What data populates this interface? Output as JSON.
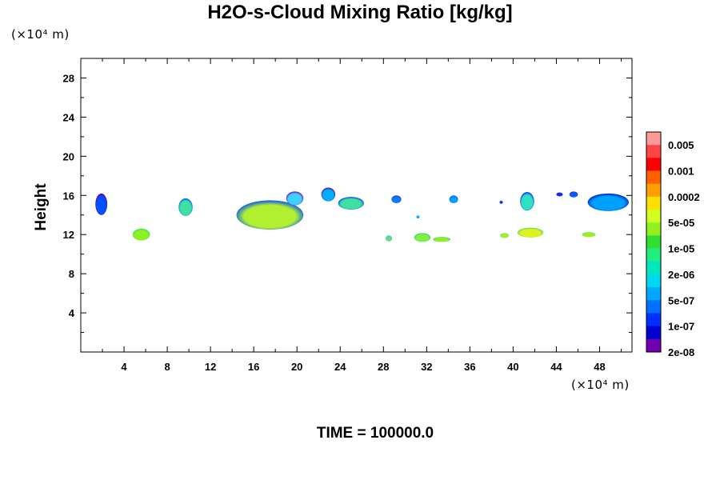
{
  "chart_data": {
    "type": "heatmap",
    "title": "H2O-s-Cloud Mixing Ratio [kg/kg]",
    "ylabel": "Height",
    "x_unit": "(×10⁴ m)",
    "y_unit": "(×10⁴ m)",
    "xlim": [
      0,
      51
    ],
    "ylim": [
      0,
      30
    ],
    "x_ticks": [
      "4",
      "8",
      "12",
      "16",
      "20",
      "24",
      "28",
      "32",
      "36",
      "40",
      "44",
      "48"
    ],
    "y_ticks": [
      "4",
      "8",
      "12",
      "16",
      "20",
      "24",
      "28"
    ],
    "legend_position": "right",
    "colorbar": {
      "levels": [
        "0.005",
        "0.001",
        "0.0002",
        "5e-05",
        "1e-05",
        "2e-06",
        "5e-07",
        "1e-07",
        "2e-08"
      ],
      "colors": [
        "#ff9999",
        "#ff4444",
        "#ff0000",
        "#ff6000",
        "#ffa000",
        "#ffe000",
        "#d0ff20",
        "#90f020",
        "#30e030",
        "#20ef80",
        "#00e8c0",
        "#00d8f0",
        "#00a8ff",
        "#0070ff",
        "#0030ff",
        "#0000d0",
        "#7000b0"
      ]
    },
    "clouds": [
      {
        "x": 1.9,
        "y": 15.1,
        "w": 1.1,
        "h": 2.2,
        "core": "#0050ff",
        "edge": "#6000b0"
      },
      {
        "x": 5.6,
        "y": 12.0,
        "w": 1.6,
        "h": 1.2,
        "core": "#90f020",
        "edge": "#30e060"
      },
      {
        "x": 9.7,
        "y": 14.8,
        "w": 1.3,
        "h": 1.8,
        "core": "#40e0a0",
        "edge": "#0060ff"
      },
      {
        "x": 17.5,
        "y": 14.0,
        "w": 6.2,
        "h": 3.0,
        "core": "#b0f030",
        "edge": "#0050ff"
      },
      {
        "x": 19.8,
        "y": 15.7,
        "w": 1.6,
        "h": 1.4,
        "core": "#40d0ff",
        "edge": "#7000b0"
      },
      {
        "x": 22.9,
        "y": 16.1,
        "w": 1.3,
        "h": 1.4,
        "core": "#00b0ff",
        "edge": "#6000b0"
      },
      {
        "x": 25.0,
        "y": 15.2,
        "w": 2.4,
        "h": 1.3,
        "core": "#40e0a0",
        "edge": "#0040ff"
      },
      {
        "x": 29.2,
        "y": 15.6,
        "w": 0.9,
        "h": 0.8,
        "core": "#0080ff",
        "edge": "#6000b0"
      },
      {
        "x": 31.6,
        "y": 11.7,
        "w": 1.5,
        "h": 0.9,
        "core": "#80f040",
        "edge": "#20d080"
      },
      {
        "x": 33.4,
        "y": 11.5,
        "w": 1.6,
        "h": 0.5,
        "core": "#90f020",
        "edge": "#20d080"
      },
      {
        "x": 34.5,
        "y": 15.6,
        "w": 0.8,
        "h": 0.8,
        "core": "#00a0ff",
        "edge": "#0030ff"
      },
      {
        "x": 41.3,
        "y": 15.4,
        "w": 1.3,
        "h": 1.9,
        "core": "#30e0c0",
        "edge": "#0030ff"
      },
      {
        "x": 41.6,
        "y": 12.2,
        "w": 2.4,
        "h": 1.0,
        "core": "#e0f020",
        "edge": "#40e060"
      },
      {
        "x": 39.2,
        "y": 11.9,
        "w": 0.8,
        "h": 0.5,
        "core": "#a0f020",
        "edge": "#40e060"
      },
      {
        "x": 48.8,
        "y": 15.3,
        "w": 3.8,
        "h": 1.8,
        "core": "#00a0ff",
        "edge": "#0020c0"
      },
      {
        "x": 47.0,
        "y": 12.0,
        "w": 1.2,
        "h": 0.5,
        "core": "#a0f020",
        "edge": "#40e060"
      },
      {
        "x": 44.3,
        "y": 16.1,
        "w": 0.6,
        "h": 0.4,
        "core": "#0030ff",
        "edge": "#6000b0"
      },
      {
        "x": 45.6,
        "y": 16.1,
        "w": 0.8,
        "h": 0.6,
        "core": "#0060ff",
        "edge": "#6000b0"
      },
      {
        "x": 28.5,
        "y": 11.6,
        "w": 0.6,
        "h": 0.6,
        "core": "#60e080",
        "edge": "#00b0ff"
      },
      {
        "x": 31.2,
        "y": 13.8,
        "w": 0.3,
        "h": 0.3,
        "core": "#00b0ff",
        "edge": "#00b0ff"
      },
      {
        "x": 38.9,
        "y": 15.3,
        "w": 0.3,
        "h": 0.3,
        "core": "#0030ff",
        "edge": "#0030ff"
      }
    ]
  },
  "time_label": "TIME = 100000.0"
}
